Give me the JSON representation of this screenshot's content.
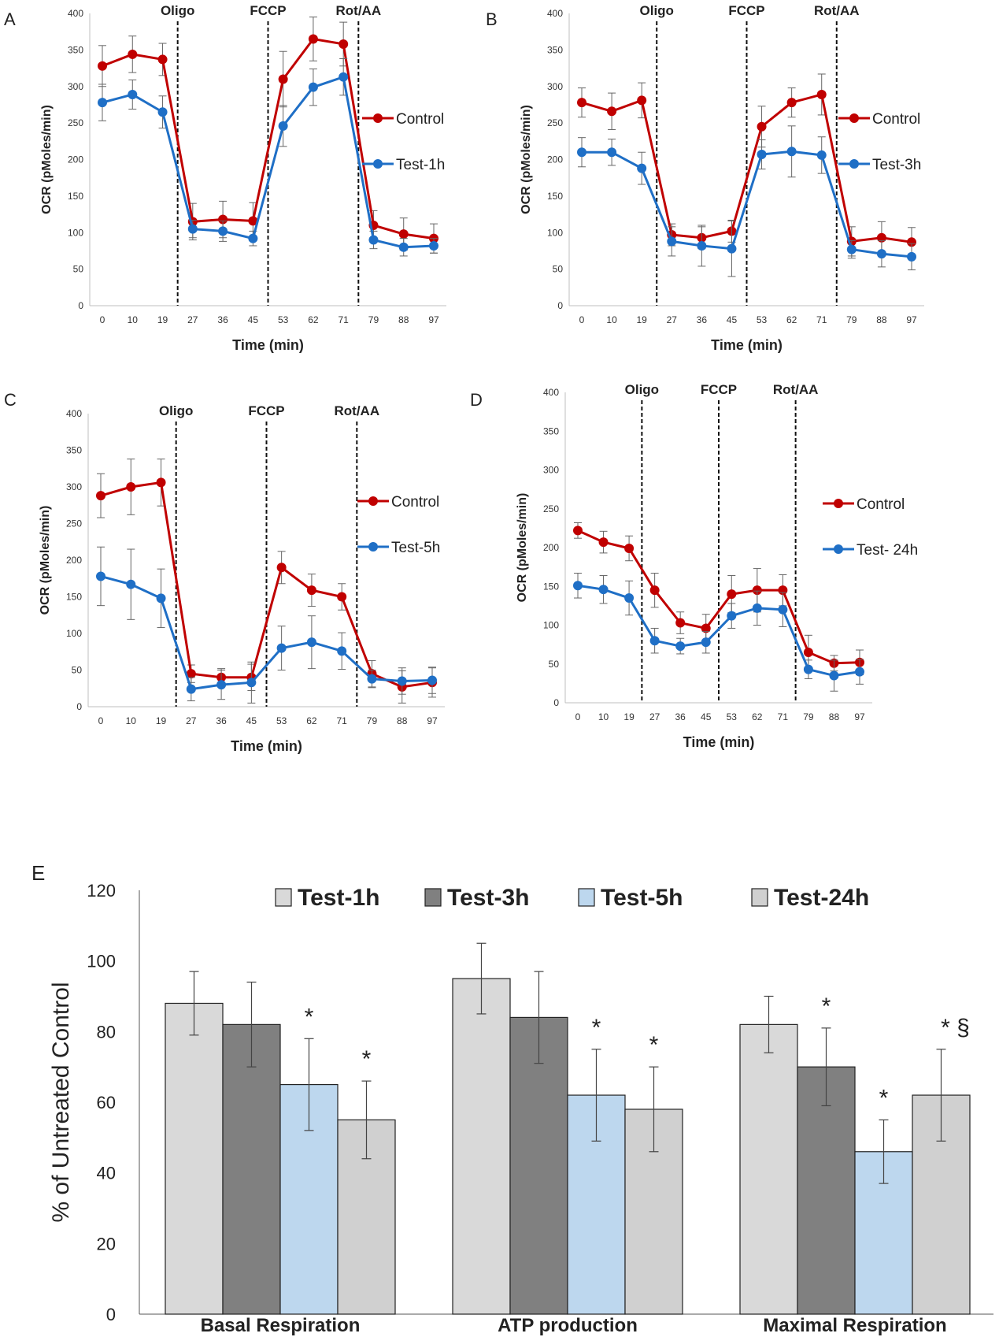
{
  "chart_data": [
    {
      "panel": "A",
      "type": "line",
      "x": [
        0,
        10,
        19,
        27,
        36,
        45,
        53,
        62,
        71,
        79,
        88,
        97
      ],
      "ylim": [
        0,
        400
      ],
      "yticks": [
        0,
        50,
        100,
        150,
        200,
        250,
        300,
        350,
        400
      ],
      "xlabel": "Time (min)",
      "ylabel": "OCR (pMoles/min)",
      "injections": [
        {
          "label": "Oligo",
          "at": 23
        },
        {
          "label": "FCCP",
          "at": 49
        },
        {
          "label": "Rot/AA",
          "at": 75
        }
      ],
      "series": [
        {
          "name": "Control",
          "color": "#c00000",
          "values": [
            328,
            344,
            337,
            115,
            118,
            116,
            310,
            365,
            358,
            110,
            98,
            92
          ],
          "errors": [
            28,
            25,
            22,
            25,
            25,
            25,
            38,
            30,
            30,
            20,
            22,
            20
          ]
        },
        {
          "name": "Test-1h",
          "color": "#1f6fc6",
          "values": [
            278,
            289,
            265,
            105,
            102,
            92,
            246,
            299,
            313,
            90,
            80,
            82
          ],
          "errors": [
            25,
            20,
            22,
            12,
            14,
            10,
            28,
            25,
            25,
            12,
            12,
            10
          ]
        }
      ]
    },
    {
      "panel": "B",
      "type": "line",
      "x": [
        0,
        10,
        19,
        27,
        36,
        45,
        53,
        62,
        71,
        79,
        88,
        97
      ],
      "ylim": [
        0,
        400
      ],
      "yticks": [
        0,
        50,
        100,
        150,
        200,
        250,
        300,
        350,
        400
      ],
      "xlabel": "Time (min)",
      "ylabel": "OCR (pMoles/min)",
      "injections": [
        {
          "label": "Oligo",
          "at": 23
        },
        {
          "label": "FCCP",
          "at": 49
        },
        {
          "label": "Rot/AA",
          "at": 75
        }
      ],
      "series": [
        {
          "name": "Control",
          "color": "#c00000",
          "values": [
            278,
            266,
            281,
            97,
            93,
            102,
            245,
            278,
            289,
            88,
            93,
            87
          ],
          "errors": [
            20,
            25,
            24,
            15,
            15,
            15,
            28,
            20,
            28,
            20,
            22,
            20
          ]
        },
        {
          "name": "Test-3h",
          "color": "#1f6fc6",
          "values": [
            210,
            210,
            188,
            88,
            82,
            78,
            207,
            211,
            206,
            77,
            71,
            67
          ],
          "errors": [
            20,
            18,
            22,
            20,
            28,
            38,
            20,
            35,
            25,
            12,
            18,
            18
          ]
        }
      ]
    },
    {
      "panel": "C",
      "type": "line",
      "x": [
        0,
        10,
        19,
        27,
        36,
        45,
        53,
        62,
        71,
        79,
        88,
        97
      ],
      "ylim": [
        0,
        400
      ],
      "yticks": [
        0,
        50,
        100,
        150,
        200,
        250,
        300,
        350,
        400
      ],
      "xlabel": "Time (min)",
      "ylabel": "OCR (pMoles/min)",
      "injections": [
        {
          "label": "Oligo",
          "at": 23
        },
        {
          "label": "FCCP",
          "at": 49
        },
        {
          "label": "Rot/AA",
          "at": 75
        }
      ],
      "series": [
        {
          "name": "Control",
          "color": "#c00000",
          "values": [
            288,
            300,
            306,
            45,
            40,
            40,
            190,
            159,
            150,
            45,
            27,
            33
          ],
          "errors": [
            30,
            38,
            32,
            12,
            12,
            18,
            22,
            22,
            18,
            18,
            22,
            20
          ]
        },
        {
          "name": "Test-5h",
          "color": "#1f6fc6",
          "values": [
            178,
            167,
            148,
            24,
            30,
            33,
            80,
            88,
            76,
            38,
            35,
            36
          ],
          "errors": [
            40,
            48,
            40,
            16,
            20,
            28,
            30,
            36,
            25,
            12,
            18,
            18
          ]
        }
      ]
    },
    {
      "panel": "D",
      "type": "line",
      "x": [
        0,
        10,
        19,
        27,
        36,
        45,
        53,
        62,
        71,
        79,
        88,
        97
      ],
      "ylim": [
        0,
        400
      ],
      "yticks": [
        0,
        50,
        100,
        150,
        200,
        250,
        300,
        350,
        400
      ],
      "xlabel": "Time (min)",
      "ylabel": "OCR (pMoles/min)",
      "injections": [
        {
          "label": "Oligo",
          "at": 23
        },
        {
          "label": "FCCP",
          "at": 49
        },
        {
          "label": "Rot/AA",
          "at": 75
        }
      ],
      "series": [
        {
          "name": "Control",
          "color": "#c00000",
          "values": [
            222,
            207,
            199,
            145,
            103,
            96,
            140,
            145,
            145,
            65,
            51,
            52
          ],
          "errors": [
            10,
            14,
            16,
            22,
            14,
            18,
            24,
            28,
            20,
            22,
            10,
            16
          ]
        },
        {
          "name": "Test- 24h",
          "color": "#1f6fc6",
          "values": [
            151,
            146,
            135,
            80,
            73,
            78,
            112,
            122,
            120,
            43,
            35,
            40
          ],
          "errors": [
            16,
            18,
            22,
            16,
            10,
            14,
            16,
            22,
            22,
            12,
            20,
            16
          ]
        }
      ]
    },
    {
      "panel": "E",
      "type": "bar",
      "categories": [
        "Basal Respiration",
        "ATP production",
        "Maximal Respiration"
      ],
      "ylim": [
        0,
        120
      ],
      "yticks": [
        0,
        20,
        40,
        60,
        80,
        100,
        120
      ],
      "ylabel": "% of Untreated Control",
      "legend_position": "top",
      "series": [
        {
          "name": "Test-1h",
          "color": "#d9d9d9",
          "values": [
            88,
            95,
            82
          ],
          "errors": [
            9,
            10,
            8
          ]
        },
        {
          "name": "Test-3h",
          "color": "#808080",
          "values": [
            82,
            84,
            70
          ],
          "errors": [
            12,
            13,
            11
          ]
        },
        {
          "name": "Test-5h",
          "color": "#bdd7ee",
          "values": [
            65,
            62,
            46
          ],
          "errors": [
            13,
            13,
            9
          ]
        },
        {
          "name": "Test-24h",
          "color": "#d0d0d0",
          "values": [
            55,
            58,
            62
          ],
          "errors": [
            11,
            12,
            13
          ]
        }
      ],
      "annotations": [
        {
          "category": 0,
          "series": 2,
          "text": "*"
        },
        {
          "category": 0,
          "series": 3,
          "text": "*"
        },
        {
          "category": 1,
          "series": 2,
          "text": "*"
        },
        {
          "category": 1,
          "series": 3,
          "text": "*"
        },
        {
          "category": 2,
          "series": 1,
          "text": "*"
        },
        {
          "category": 2,
          "series": 2,
          "text": "*"
        },
        {
          "category": 2,
          "series": 3,
          "text": "* §"
        }
      ]
    }
  ]
}
